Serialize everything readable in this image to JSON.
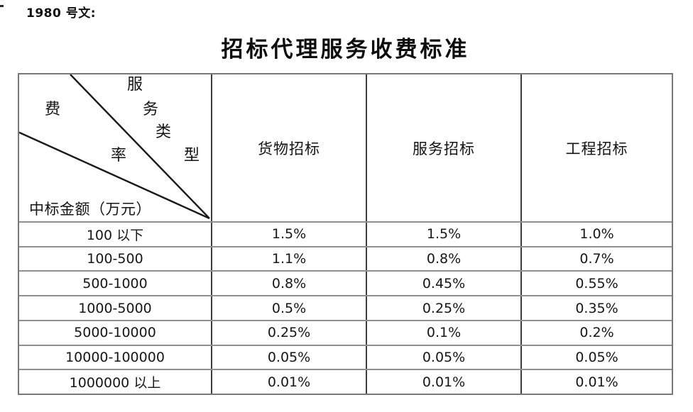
{
  "doc_label": "1980 号文:",
  "title": "招标代理服务收费标准",
  "table": {
    "corner": {
      "service_type_label": "服务类型",
      "service_type_chars": [
        "服",
        "务",
        "类",
        "型"
      ],
      "fee_rate_label": "费率",
      "fee_rate_chars": [
        "费",
        "率"
      ],
      "amount_label": "中标金额（万元）"
    },
    "columns": [
      "货物招标",
      "服务招标",
      "工程招标"
    ],
    "rows": [
      {
        "range": "100 以下",
        "values": [
          "1.5%",
          "1.5%",
          "1.0%"
        ]
      },
      {
        "range": "100-500",
        "values": [
          "1.1%",
          "0.8%",
          "0.7%"
        ]
      },
      {
        "range": "500-1000",
        "values": [
          "0.8%",
          "0.45%",
          "0.55%"
        ]
      },
      {
        "range": "1000-5000",
        "values": [
          "0.5%",
          "0.25%",
          "0.35%"
        ]
      },
      {
        "range": "5000-10000",
        "values": [
          "0.25%",
          "0.1%",
          "0.2%"
        ]
      },
      {
        "range": "10000-100000",
        "values": [
          "0.05%",
          "0.05%",
          "0.05%"
        ]
      },
      {
        "range": "1000000 以上",
        "values": [
          "0.01%",
          "0.01%",
          "0.01%"
        ]
      }
    ]
  },
  "colors": {
    "text": "#1a1a1a",
    "outer_border": "#787878",
    "h_border": "#8f8f8f",
    "v_border": "#3d3d3d",
    "diagonal_line": "#1a1a1a"
  }
}
